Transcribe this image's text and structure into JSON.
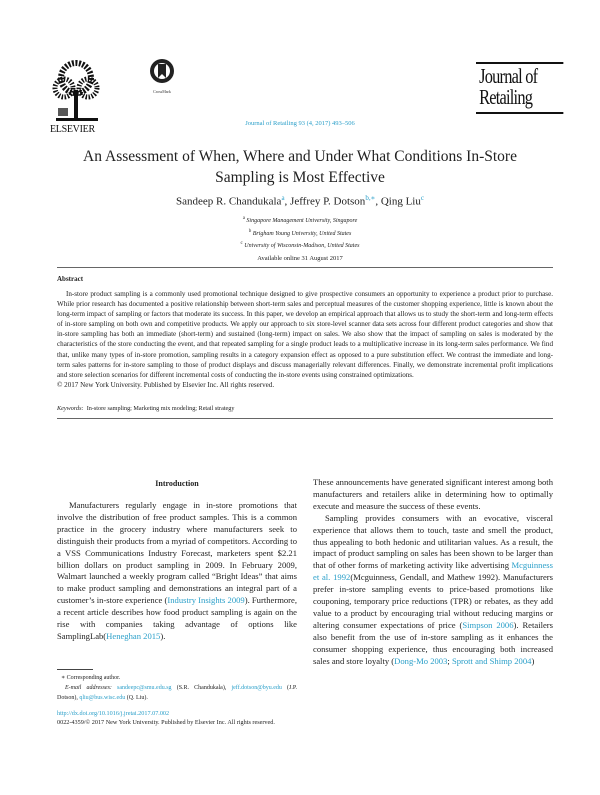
{
  "header": {
    "publisher_logo": "ELSEVIER",
    "crossmark_label": "CrossMark",
    "journal_logo": [
      "Journal of",
      "Retailing"
    ],
    "citation": "Journal of Retailing 93 (4, 2017) 493–506"
  },
  "article": {
    "title": "An Assessment of When, Where and Under What Conditions In-Store Sampling is Most Effective",
    "authors": [
      {
        "name": "Sandeep R. Chandukala",
        "sup": "a"
      },
      {
        "name": "Jeffrey P. Dotson",
        "sup": "b,∗"
      },
      {
        "name": "Qing Liu",
        "sup": "c"
      }
    ],
    "affiliations": [
      {
        "sup": "a",
        "text": "Singapore Management University, Singapore"
      },
      {
        "sup": "b",
        "text": "Brigham Young University, United States"
      },
      {
        "sup": "c",
        "text": "University of Wisconsin-Madison, United States"
      }
    ],
    "available": "Available online 31 August 2017"
  },
  "abstract": {
    "heading": "Abstract",
    "text": "In-store product sampling is a commonly used promotional technique designed to give prospective consumers an opportunity to experience a product prior to purchase. While prior research has documented a positive relationship between short-term sales and perceptual measures of the customer shopping experience, little is known about the long-term impact of sampling or factors that moderate its success. In this paper, we develop an empirical approach that allows us to study the short-term and long-term effects of in-store sampling on both own and competitive products. We apply our approach to six store-level scanner data sets across four different product categories and show that in-store sampling has both an immediate (short-term) and sustained (long-term) impact on sales. We also show that the impact of sampling on sales is moderated by the characteristics of the store conducting the event, and that repeated sampling for a single product leads to a multiplicative increase in its long-term sales performance. We find that, unlike many types of in-store promotion, sampling results in a category expansion effect as opposed to a pure substitution effect. We contrast the immediate and long-term sales patterns for in-store sampling to those of product displays and discuss managerially relevant differences. Finally, we demonstrate incremental profit implications and store selection scenarios for different incremental costs of conducting the in-store events using constrained optimizations.",
    "copyright": "© 2017 New York University. Published by Elsevier Inc. All rights reserved.",
    "keywords_label": "Keywords:",
    "keywords": "In-store sampling; Marketing mix modeling; Retail strategy"
  },
  "intro": {
    "heading": "Introduction",
    "left": [
      "Manufacturers regularly engage in in-store promotions that involve the distribution of free product samples. This is a common practice in the grocery industry where manufacturers seek to distinguish their products from a myriad of competitors. According to a VSS Communications Industry Forecast, marketers spent $2.21 billion dollars on product sampling in 2009. In February 2009, Walmart launched a weekly program called “Bright Ideas” that aims to make product sampling and demonstrations an integral part of a customer’s in-store experience (",
      "Industry Insights 2009",
      "). Furthermore, a recent article describes how food product sampling is again on the rise with companies taking advantage of options like SamplingLab(",
      "Heneghan 2015",
      ")."
    ],
    "right_p1": "These announcements have generated significant interest among both manufacturers and retailers alike in determining how to optimally execute and measure the success of these events.",
    "right_p2": [
      "Sampling provides consumers with an evocative, visceral experience that allows them to touch, taste and smell the product, thus appealing to both hedonic and utilitarian values. As a result, the impact of product sampling on sales has been shown to be larger than that of other forms of marketing activity like advertising ",
      "Mcguinness et al. 1992",
      "(Mcguinness, Gendall, and Mathew 1992). Manufacturers prefer in-store sampling events to price-based promotions like couponing, temporary price reductions (TPR) or rebates, as they add value to a product by encouraging trial without reducing margins or altering consumer expectations of price (",
      "Simpson 2006",
      "). Retailers also benefit from the use of in-store sampling as it enhances the consumer shopping experience, thus encouraging both increased sales and store loyalty (",
      "Dong-Mo 2003",
      "; ",
      "Sprott and Shimp 2004",
      ")"
    ]
  },
  "footnotes": {
    "corresponding": "∗ Corresponding author.",
    "email_label": "E-mail addresses:",
    "emails": [
      {
        "email": "sandeepc@smu.edu.sg",
        "who": "(S.R. Chandukala),"
      },
      {
        "email": "jeff.dotson@byu.edu",
        "who": "(J.P. Dotson),"
      },
      {
        "email": "qliu@bus.wisc.edu",
        "who": "(Q. Liu)."
      }
    ],
    "doi": "http://dx.doi.org/10.1016/j.jretai.2017.07.002",
    "issn": "0022-4359/© 2017 New York University. Published by Elsevier Inc. All rights reserved."
  },
  "colors": {
    "link": "#2a9fc9",
    "text": "#222222"
  }
}
